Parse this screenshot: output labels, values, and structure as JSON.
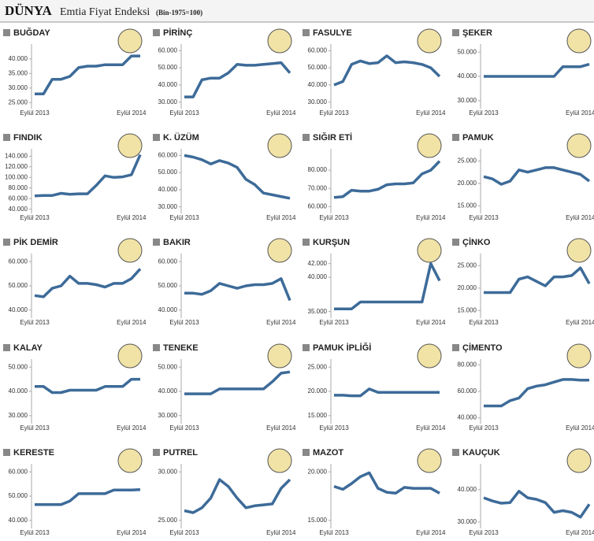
{
  "header": {
    "brand": "DÜNYA",
    "title": "Emtia Fiyat Endeksi",
    "note": "(Bin-1975=100)"
  },
  "chart_data": [
    {
      "type": "line",
      "title": "BUĞDAY",
      "color": "#3d6b99",
      "categories": [
        "Eylül 2013",
        null,
        null,
        null,
        null,
        null,
        null,
        null,
        null,
        null,
        null,
        "Eylül 2014",
        null
      ],
      "values": [
        28000,
        28000,
        33000,
        33000,
        34000,
        37000,
        37500,
        37500,
        38000,
        38000,
        38000,
        41000,
        41000
      ],
      "ylim": [
        24000,
        44000
      ],
      "yticks": [
        {
          "value": 25000,
          "label": "25.000"
        },
        {
          "value": 30000,
          "label": "30.000"
        },
        {
          "value": 35000,
          "label": "35.000"
        },
        {
          "value": 40000,
          "label": "40.000"
        }
      ]
    },
    {
      "type": "line",
      "title": "PİRİNÇ",
      "color": "#3d6b99",
      "categories": [
        "Eylül 2013",
        null,
        null,
        null,
        null,
        null,
        null,
        null,
        null,
        null,
        null,
        "Eylül 2014",
        null
      ],
      "values": [
        33000,
        33000,
        43000,
        44000,
        44000,
        47000,
        52000,
        51500,
        51500,
        52000,
        52500,
        53000,
        47000
      ],
      "ylim": [
        28000,
        62000
      ],
      "yticks": [
        {
          "value": 30000,
          "label": "30.000"
        },
        {
          "value": 40000,
          "label": "40.000"
        },
        {
          "value": 50000,
          "label": "50.000"
        },
        {
          "value": 60000,
          "label": "60.000"
        }
      ]
    },
    {
      "type": "line",
      "title": "FASULYE",
      "color": "#3d6b99",
      "categories": [
        "Eylül 2013",
        null,
        null,
        null,
        null,
        null,
        null,
        null,
        null,
        null,
        null,
        "Eylül 2014",
        null
      ],
      "values": [
        40000,
        42000,
        52000,
        54000,
        52500,
        53000,
        57000,
        53000,
        53500,
        53000,
        52000,
        50000,
        45000
      ],
      "ylim": [
        28000,
        62000
      ],
      "yticks": [
        {
          "value": 30000,
          "label": "30.000"
        },
        {
          "value": 40000,
          "label": "40.000"
        },
        {
          "value": 50000,
          "label": "50.000"
        },
        {
          "value": 60000,
          "label": "60.000"
        }
      ]
    },
    {
      "type": "line",
      "title": "ŞEKER",
      "color": "#3d6b99",
      "categories": [
        "Eylül 2013",
        null,
        null,
        null,
        null,
        null,
        null,
        null,
        null,
        null,
        null,
        "Eylül 2014",
        null
      ],
      "values": [
        40000,
        40000,
        40000,
        40000,
        40000,
        40000,
        40000,
        40000,
        40000,
        44000,
        44000,
        44000,
        45000
      ],
      "ylim": [
        28000,
        52000
      ],
      "yticks": [
        {
          "value": 30000,
          "label": "30.000"
        },
        {
          "value": 40000,
          "label": "40.000"
        },
        {
          "value": 50000,
          "label": "50.000"
        }
      ]
    },
    {
      "type": "line",
      "title": "FINDIK",
      "color": "#3d6b99",
      "categories": [
        "Eylül 2013",
        null,
        null,
        null,
        null,
        null,
        null,
        null,
        null,
        null,
        null,
        "Eylül 2014",
        null
      ],
      "values": [
        65000,
        66000,
        66000,
        70000,
        68000,
        69000,
        69000,
        85000,
        103000,
        100000,
        101000,
        105000,
        143000
      ],
      "ylim": [
        38000,
        148000
      ],
      "yticks": [
        {
          "value": 40000,
          "label": "40.000"
        },
        {
          "value": 60000,
          "label": "60.000"
        },
        {
          "value": 80000,
          "label": "80.000"
        },
        {
          "value": 100000,
          "label": "100.000"
        },
        {
          "value": 120000,
          "label": "120.000"
        },
        {
          "value": 140000,
          "label": "140.000"
        }
      ]
    },
    {
      "type": "line",
      "title": "K. ÜZÜM",
      "color": "#3d6b99",
      "categories": [
        "Eylül 2013",
        null,
        null,
        null,
        null,
        null,
        null,
        null,
        null,
        null,
        null,
        "Eylül 2014",
        null
      ],
      "values": [
        60000,
        59000,
        57500,
        55000,
        57000,
        55500,
        53000,
        46000,
        43000,
        38000,
        37000,
        36000,
        35000
      ],
      "ylim": [
        28000,
        62000
      ],
      "yticks": [
        {
          "value": 30000,
          "label": "30.000"
        },
        {
          "value": 40000,
          "label": "40.000"
        },
        {
          "value": 50000,
          "label": "50.000"
        },
        {
          "value": 60000,
          "label": "60.000"
        }
      ]
    },
    {
      "type": "line",
      "title": "SIĞIR ETİ",
      "color": "#3d6b99",
      "categories": [
        "Eylül 2013",
        null,
        null,
        null,
        null,
        null,
        null,
        null,
        null,
        null,
        null,
        "Eylül 2014",
        null
      ],
      "values": [
        65000,
        65500,
        69000,
        68500,
        68500,
        69500,
        72000,
        72500,
        72500,
        73000,
        78000,
        80000,
        85000
      ],
      "ylim": [
        58000,
        90000
      ],
      "yticks": [
        {
          "value": 60000,
          "label": "60.000"
        },
        {
          "value": 70000,
          "label": "70.000"
        },
        {
          "value": 80000,
          "label": "80.000"
        }
      ]
    },
    {
      "type": "line",
      "title": "PAMUK",
      "color": "#3d6b99",
      "categories": [
        "Eylül 2013",
        null,
        null,
        null,
        null,
        null,
        null,
        null,
        null,
        null,
        null,
        "Eylül 2014",
        null
      ],
      "values": [
        21500,
        21000,
        19800,
        20500,
        23000,
        22500,
        23000,
        23500,
        23500,
        23000,
        22500,
        22000,
        20500
      ],
      "ylim": [
        14000,
        27000
      ],
      "yticks": [
        {
          "value": 15000,
          "label": "15.000"
        },
        {
          "value": 20000,
          "label": "20.000"
        },
        {
          "value": 25000,
          "label": "25.000"
        }
      ]
    },
    {
      "type": "line",
      "title": "PİK DEMİR",
      "color": "#3d6b99",
      "categories": [
        "Eylül 2013",
        null,
        null,
        null,
        null,
        null,
        null,
        null,
        null,
        null,
        null,
        "Eylül 2014",
        null
      ],
      "values": [
        46000,
        45500,
        49000,
        50000,
        54000,
        51000,
        51000,
        50500,
        49500,
        51000,
        51000,
        53000,
        57000
      ],
      "ylim": [
        38000,
        62000
      ],
      "yticks": [
        {
          "value": 40000,
          "label": "40.000"
        },
        {
          "value": 50000,
          "label": "50.000"
        },
        {
          "value": 60000,
          "label": "60.000"
        }
      ]
    },
    {
      "type": "line",
      "title": "BAKIR",
      "color": "#3d6b99",
      "categories": [
        "Eylül 2013",
        null,
        null,
        null,
        null,
        null,
        null,
        null,
        null,
        null,
        null,
        "Eylül 2014",
        null
      ],
      "values": [
        47000,
        47000,
        46500,
        48000,
        51000,
        50000,
        49000,
        50000,
        50500,
        50500,
        51000,
        53000,
        44000
      ],
      "ylim": [
        38000,
        62000
      ],
      "yticks": [
        {
          "value": 40000,
          "label": "40.000"
        },
        {
          "value": 50000,
          "label": "50.000"
        },
        {
          "value": 60000,
          "label": "60.000"
        }
      ]
    },
    {
      "type": "line",
      "title": "KURŞUN",
      "color": "#3d6b99",
      "categories": [
        "Eylül 2013",
        null,
        null,
        null,
        null,
        null,
        null,
        null,
        null,
        null,
        null,
        "Eylül 2014",
        null
      ],
      "values": [
        35400,
        35400,
        35400,
        36400,
        36400,
        36400,
        36400,
        36400,
        36400,
        36400,
        36400,
        42000,
        39500
      ],
      "ylim": [
        34500,
        43000
      ],
      "yticks": [
        {
          "value": 35000,
          "label": "35.000"
        },
        {
          "value": 40000,
          "label": "40.000"
        },
        {
          "value": 42000,
          "label": "42.000"
        }
      ]
    },
    {
      "type": "line",
      "title": "ÇİNKO",
      "color": "#3d6b99",
      "categories": [
        "Eylül 2013",
        null,
        null,
        null,
        null,
        null,
        null,
        null,
        null,
        null,
        null,
        "Eylül 2014",
        null
      ],
      "values": [
        19000,
        19000,
        19000,
        19000,
        22000,
        22500,
        21500,
        20500,
        22500,
        22500,
        22800,
        24500,
        21000
      ],
      "ylim": [
        14000,
        27000
      ],
      "yticks": [
        {
          "value": 15000,
          "label": "15.000"
        },
        {
          "value": 20000,
          "label": "20.000"
        },
        {
          "value": 25000,
          "label": "25.000"
        }
      ]
    },
    {
      "type": "line",
      "title": "KALAY",
      "color": "#3d6b99",
      "categories": [
        "Eylül 2013",
        null,
        null,
        null,
        null,
        null,
        null,
        null,
        null,
        null,
        null,
        "Eylül 2014",
        null
      ],
      "values": [
        42000,
        42000,
        39500,
        39500,
        40500,
        40500,
        40500,
        40500,
        42000,
        42000,
        42000,
        45000,
        45000
      ],
      "ylim": [
        28000,
        52000
      ],
      "yticks": [
        {
          "value": 30000,
          "label": "30.000"
        },
        {
          "value": 40000,
          "label": "40.000"
        },
        {
          "value": 50000,
          "label": "50.000"
        }
      ]
    },
    {
      "type": "line",
      "title": "TENEKE",
      "color": "#3d6b99",
      "categories": [
        "Eylül 2013",
        null,
        null,
        null,
        null,
        null,
        null,
        null,
        null,
        null,
        null,
        "Eylül 2014",
        null
      ],
      "values": [
        39000,
        39000,
        39000,
        39000,
        41000,
        41000,
        41000,
        41000,
        41000,
        41000,
        44000,
        47500,
        48000
      ],
      "ylim": [
        28000,
        52000
      ],
      "yticks": [
        {
          "value": 30000,
          "label": "30.000"
        },
        {
          "value": 40000,
          "label": "40.000"
        },
        {
          "value": 50000,
          "label": "50.000"
        }
      ]
    },
    {
      "type": "line",
      "title": "PAMUK İPLİĞİ",
      "color": "#3d6b99",
      "categories": [
        "Eylül 2013",
        null,
        null,
        null,
        null,
        null,
        null,
        null,
        null,
        null,
        null,
        "Eylül 2014",
        null
      ],
      "values": [
        19200,
        19200,
        19100,
        19100,
        20500,
        19800,
        19800,
        19800,
        19800,
        19800,
        19800,
        19800,
        19800
      ],
      "ylim": [
        14000,
        26000
      ],
      "yticks": [
        {
          "value": 15000,
          "label": "15.000"
        },
        {
          "value": 20000,
          "label": "20.000"
        },
        {
          "value": 25000,
          "label": "25.000"
        }
      ]
    },
    {
      "type": "line",
      "title": "ÇİMENTO",
      "color": "#3d6b99",
      "categories": [
        "Eylül 2013",
        null,
        null,
        null,
        null,
        null,
        null,
        null,
        null,
        null,
        null,
        "Eylül 2014",
        null
      ],
      "values": [
        49000,
        49000,
        49000,
        53000,
        55000,
        62000,
        64000,
        65000,
        67000,
        69000,
        69000,
        68500,
        68500
      ],
      "ylim": [
        38000,
        82000
      ],
      "yticks": [
        {
          "value": 40000,
          "label": "40.000"
        },
        {
          "value": 60000,
          "label": "60.000"
        },
        {
          "value": 80000,
          "label": "80.000"
        }
      ]
    },
    {
      "type": "line",
      "title": "KERESTE",
      "color": "#3d6b99",
      "categories": [
        "Eylül 2013",
        null,
        null,
        null,
        null,
        null,
        null,
        null,
        null,
        null,
        null,
        "Eylül 2014",
        null
      ],
      "values": [
        46500,
        46500,
        46500,
        46500,
        48000,
        51000,
        51000,
        51000,
        51000,
        52500,
        52500,
        52500,
        52700
      ],
      "ylim": [
        38000,
        62000
      ],
      "yticks": [
        {
          "value": 40000,
          "label": "40.000"
        },
        {
          "value": 50000,
          "label": "50.000"
        },
        {
          "value": 60000,
          "label": "60.000"
        }
      ]
    },
    {
      "type": "line",
      "title": "PUTREL",
      "color": "#3d6b99",
      "categories": [
        "Eylül 2013",
        null,
        null,
        null,
        null,
        null,
        null,
        null,
        null,
        null,
        null,
        "Eylül 2014",
        null
      ],
      "values": [
        26000,
        25800,
        26300,
        27300,
        29200,
        28500,
        27300,
        26300,
        26500,
        26600,
        26700,
        28300,
        29200
      ],
      "ylim": [
        24500,
        30500
      ],
      "yticks": [
        {
          "value": 25000,
          "label": "25.000"
        },
        {
          "value": 30000,
          "label": "30.000"
        }
      ]
    },
    {
      "type": "line",
      "title": "MAZOT",
      "color": "#3d6b99",
      "categories": [
        "Eylül 2013",
        null,
        null,
        null,
        null,
        null,
        null,
        null,
        null,
        null,
        null,
        "Eylül 2014",
        null
      ],
      "values": [
        18500,
        18200,
        18800,
        19500,
        19900,
        18300,
        17900,
        17800,
        18400,
        18300,
        18300,
        18300,
        17800
      ],
      "ylim": [
        14500,
        20500
      ],
      "yticks": [
        {
          "value": 15000,
          "label": "15.000"
        },
        {
          "value": 20000,
          "label": "20.000"
        }
      ]
    },
    {
      "type": "line",
      "title": "KAUÇUK",
      "color": "#3d6b99",
      "categories": [
        "Eylül 2013",
        null,
        null,
        null,
        null,
        null,
        null,
        null,
        null,
        null,
        null,
        "Eylül 2014",
        null
      ],
      "values": [
        37500,
        36500,
        35800,
        36000,
        39500,
        37500,
        37000,
        36000,
        33000,
        33500,
        33000,
        31500,
        35500
      ],
      "ylim": [
        29000,
        47000
      ],
      "yticks": [
        {
          "value": 30000,
          "label": "30.000"
        },
        {
          "value": 40000,
          "label": "40.000"
        }
      ]
    }
  ]
}
